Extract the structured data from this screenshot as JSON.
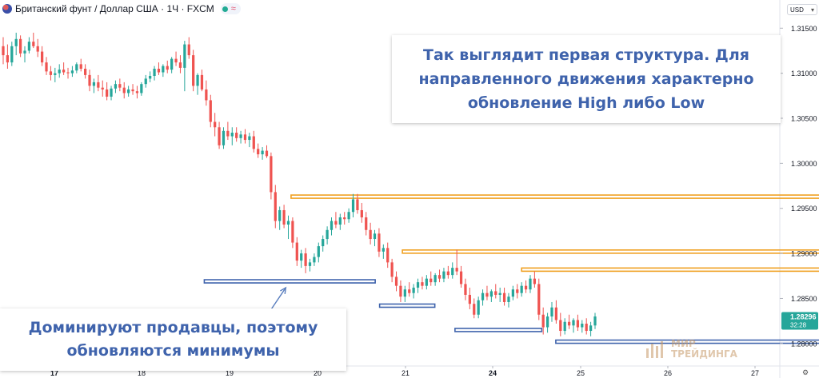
{
  "header": {
    "symbol": "Британский фунт / Доллар США · 1Ч · FXCM",
    "wave_icon": "≈"
  },
  "currency_label": "USD",
  "price_badge": {
    "price": "1.28296",
    "countdown": "32:28",
    "color": "#26a69a"
  },
  "annotations": {
    "top_note": "Так выглядит первая структура. Для направленного движения характерно обновление High либо Low",
    "bottom_note": "Доминируют продавцы, поэтому обновляются минимумы"
  },
  "logo": {
    "line1": "МИР",
    "line2": "ТРЕЙДИНГА"
  },
  "colors": {
    "up": "#26a69a",
    "down": "#ef5350",
    "high_zone": "#f0a020",
    "low_zone": "#3f63ac",
    "arrow": "#5b7fbf",
    "text": "#3f63ac"
  },
  "chart_data": {
    "type": "candlestick",
    "x_ticks": [
      {
        "label": "17",
        "bold": true
      },
      {
        "label": "18",
        "bold": false
      },
      {
        "label": "19",
        "bold": false
      },
      {
        "label": "20",
        "bold": false
      },
      {
        "label": "21",
        "bold": false
      },
      {
        "label": "24",
        "bold": true
      },
      {
        "label": "25",
        "bold": false
      },
      {
        "label": "26",
        "bold": false
      },
      {
        "label": "27",
        "bold": false
      }
    ],
    "y_ticks": [
      "1.31500",
      "1.31000",
      "1.30500",
      "1.30000",
      "1.29500",
      "1.29000",
      "1.28500",
      "1.28000"
    ],
    "ylim": [
      1.2775,
      1.316
    ],
    "last_price": 1.28296,
    "zones": [
      {
        "kind": "high",
        "from_day": 19.7,
        "to_day": 25.84,
        "price": 1.2963
      },
      {
        "kind": "high",
        "from_day": 20.97,
        "to_day": 25.84,
        "price": 1.2902
      },
      {
        "kind": "high",
        "from_day": 22.33,
        "to_day": 25.84,
        "price": 1.2882
      },
      {
        "kind": "low",
        "from_day": 18.71,
        "to_day": 20.66,
        "price": 1.2869
      },
      {
        "kind": "low",
        "from_day": 20.71,
        "to_day": 21.34,
        "price": 1.2842
      },
      {
        "kind": "low",
        "from_day": 21.57,
        "to_day": 22.56,
        "price": 1.2815
      },
      {
        "kind": "low",
        "from_day": 22.72,
        "to_day": 25.84,
        "price": 1.2802
      }
    ],
    "arrow": {
      "from_day": 19.37,
      "from_price": 1.2823,
      "to_day": 19.64,
      "to_price": 1.2862
    },
    "candles": [
      [
        1.313,
        1.314,
        1.311,
        1.312
      ],
      [
        1.312,
        1.3132,
        1.3105,
        1.3112
      ],
      [
        1.3112,
        1.3135,
        1.3108,
        1.313
      ],
      [
        1.313,
        1.3145,
        1.312,
        1.3138
      ],
      [
        1.3138,
        1.3142,
        1.3118,
        1.3122
      ],
      [
        1.3122,
        1.313,
        1.3112,
        1.3125
      ],
      [
        1.3125,
        1.314,
        1.3122,
        1.3135
      ],
      [
        1.3135,
        1.3145,
        1.3128,
        1.313
      ],
      [
        1.313,
        1.3138,
        1.3118,
        1.3124
      ],
      [
        1.3124,
        1.313,
        1.3108,
        1.3112
      ],
      [
        1.3112,
        1.3118,
        1.3098,
        1.3102
      ],
      [
        1.3102,
        1.3108,
        1.3092,
        1.3098
      ],
      [
        1.3098,
        1.3106,
        1.309,
        1.31
      ],
      [
        1.31,
        1.311,
        1.3095,
        1.3104
      ],
      [
        1.3104,
        1.3112,
        1.3098,
        1.3101
      ],
      [
        1.3101,
        1.3106,
        1.3094,
        1.31
      ],
      [
        1.31,
        1.3108,
        1.3096,
        1.3103
      ],
      [
        1.3103,
        1.3112,
        1.31,
        1.311
      ],
      [
        1.311,
        1.3116,
        1.3102,
        1.3105
      ],
      [
        1.3105,
        1.311,
        1.3094,
        1.3098
      ],
      [
        1.3098,
        1.3104,
        1.308,
        1.3086
      ],
      [
        1.3086,
        1.3094,
        1.3078,
        1.309
      ],
      [
        1.309,
        1.3098,
        1.308,
        1.3084
      ],
      [
        1.3084,
        1.3092,
        1.3074,
        1.3082
      ],
      [
        1.3082,
        1.309,
        1.307,
        1.3074
      ],
      [
        1.3074,
        1.3086,
        1.307,
        1.3083
      ],
      [
        1.3083,
        1.3092,
        1.3078,
        1.3088
      ],
      [
        1.3088,
        1.3094,
        1.308,
        1.3084
      ],
      [
        1.3084,
        1.309,
        1.3072,
        1.3078
      ],
      [
        1.3078,
        1.3086,
        1.3074,
        1.3082
      ],
      [
        1.3082,
        1.3088,
        1.3076,
        1.308
      ],
      [
        1.308,
        1.3086,
        1.3072,
        1.3078
      ],
      [
        1.3078,
        1.309,
        1.3075,
        1.3088
      ],
      [
        1.3088,
        1.3098,
        1.3084,
        1.3094
      ],
      [
        1.3094,
        1.3102,
        1.309,
        1.3097
      ],
      [
        1.3097,
        1.3108,
        1.3092,
        1.3105
      ],
      [
        1.3105,
        1.3112,
        1.3098,
        1.3101
      ],
      [
        1.3101,
        1.311,
        1.3096,
        1.3108
      ],
      [
        1.3108,
        1.3114,
        1.31,
        1.3104
      ],
      [
        1.3104,
        1.3118,
        1.31,
        1.3116
      ],
      [
        1.3116,
        1.3124,
        1.3108,
        1.3112
      ],
      [
        1.3112,
        1.312,
        1.31,
        1.3106
      ],
      [
        1.3106,
        1.3136,
        1.308,
        1.3132
      ],
      [
        1.3132,
        1.314,
        1.3116,
        1.312
      ],
      [
        1.312,
        1.3126,
        1.308,
        1.3086
      ],
      [
        1.3086,
        1.31,
        1.3076,
        1.3098
      ],
      [
        1.3098,
        1.3104,
        1.308,
        1.3082
      ],
      [
        1.3082,
        1.3092,
        1.3064,
        1.307
      ],
      [
        1.307,
        1.3076,
        1.304,
        1.3046
      ],
      [
        1.3046,
        1.3056,
        1.303,
        1.304
      ],
      [
        1.304,
        1.3046,
        1.3016,
        1.302
      ],
      [
        1.302,
        1.304,
        1.3016,
        1.3036
      ],
      [
        1.3036,
        1.3046,
        1.3026,
        1.303
      ],
      [
        1.303,
        1.304,
        1.302,
        1.3034
      ],
      [
        1.3034,
        1.304,
        1.3024,
        1.3028
      ],
      [
        1.3028,
        1.3036,
        1.3022,
        1.3032
      ],
      [
        1.3032,
        1.3038,
        1.3022,
        1.3026
      ],
      [
        1.3026,
        1.3034,
        1.3018,
        1.303
      ],
      [
        1.303,
        1.3036,
        1.3012,
        1.3016
      ],
      [
        1.3016,
        1.3022,
        1.3006,
        1.301
      ],
      [
        1.301,
        1.3018,
        1.3004,
        1.3014
      ],
      [
        1.3014,
        1.302,
        1.3006,
        1.3008
      ],
      [
        1.3008,
        1.3012,
        1.296,
        1.2968
      ],
      [
        1.2968,
        1.2976,
        1.2928,
        1.2936
      ],
      [
        1.2936,
        1.2952,
        1.2926,
        1.2948
      ],
      [
        1.2948,
        1.2954,
        1.2928,
        1.2932
      ],
      [
        1.2932,
        1.2942,
        1.2916,
        1.2936
      ],
      [
        1.2936,
        1.294,
        1.2906,
        1.2912
      ],
      [
        1.2912,
        1.2918,
        1.2886,
        1.2892
      ],
      [
        1.2892,
        1.2904,
        1.2884,
        1.29
      ],
      [
        1.29,
        1.2906,
        1.2878,
        1.2886
      ],
      [
        1.2886,
        1.2894,
        1.288,
        1.289
      ],
      [
        1.289,
        1.29,
        1.2886,
        1.2896
      ],
      [
        1.2896,
        1.2912,
        1.289,
        1.2908
      ],
      [
        1.2908,
        1.292,
        1.2902,
        1.2916
      ],
      [
        1.2916,
        1.293,
        1.291,
        1.2926
      ],
      [
        1.2926,
        1.294,
        1.292,
        1.2936
      ],
      [
        1.2936,
        1.2946,
        1.2928,
        1.2932
      ],
      [
        1.2932,
        1.2944,
        1.2926,
        1.294
      ],
      [
        1.294,
        1.2946,
        1.2932,
        1.2938
      ],
      [
        1.2938,
        1.295,
        1.2934,
        1.2946
      ],
      [
        1.2946,
        1.2966,
        1.294,
        1.296
      ],
      [
        1.296,
        1.2966,
        1.2944,
        1.2948
      ],
      [
        1.2948,
        1.2956,
        1.2934,
        1.294
      ],
      [
        1.294,
        1.2946,
        1.292,
        1.2926
      ],
      [
        1.2926,
        1.2934,
        1.291,
        1.2916
      ],
      [
        1.2916,
        1.2926,
        1.2908,
        1.2922
      ],
      [
        1.2922,
        1.2928,
        1.2896,
        1.2902
      ],
      [
        1.2902,
        1.291,
        1.2894,
        1.2906
      ],
      [
        1.2906,
        1.2912,
        1.2884,
        1.289
      ],
      [
        1.289,
        1.2894,
        1.2868,
        1.2874
      ],
      [
        1.2874,
        1.288,
        1.2858,
        1.2864
      ],
      [
        1.2864,
        1.287,
        1.2846,
        1.2852
      ],
      [
        1.2852,
        1.2864,
        1.2846,
        1.286
      ],
      [
        1.286,
        1.2868,
        1.2852,
        1.2856
      ],
      [
        1.2856,
        1.2866,
        1.285,
        1.2862
      ],
      [
        1.2862,
        1.2872,
        1.2856,
        1.2868
      ],
      [
        1.2868,
        1.2874,
        1.286,
        1.2864
      ],
      [
        1.2864,
        1.2876,
        1.286,
        1.2872
      ],
      [
        1.2872,
        1.288,
        1.2864,
        1.2868
      ],
      [
        1.2868,
        1.2878,
        1.2864,
        1.2876
      ],
      [
        1.2876,
        1.2882,
        1.2868,
        1.2872
      ],
      [
        1.2872,
        1.2884,
        1.2868,
        1.288
      ],
      [
        1.288,
        1.2886,
        1.2872,
        1.2876
      ],
      [
        1.2876,
        1.289,
        1.2872,
        1.2884
      ],
      [
        1.2884,
        1.2904,
        1.2876,
        1.288
      ],
      [
        1.288,
        1.2886,
        1.2862,
        1.2866
      ],
      [
        1.2866,
        1.2872,
        1.2848,
        1.2854
      ],
      [
        1.2854,
        1.2862,
        1.2838,
        1.2844
      ],
      [
        1.2844,
        1.285,
        1.2828,
        1.2832
      ],
      [
        1.2832,
        1.2852,
        1.2828,
        1.2848
      ],
      [
        1.2848,
        1.286,
        1.2842,
        1.2856
      ],
      [
        1.2856,
        1.2864,
        1.2848,
        1.2852
      ],
      [
        1.2852,
        1.286,
        1.2846,
        1.2858
      ],
      [
        1.2858,
        1.2866,
        1.285,
        1.2854
      ],
      [
        1.2854,
        1.2862,
        1.2846,
        1.2856
      ],
      [
        1.2856,
        1.2862,
        1.2842,
        1.2846
      ],
      [
        1.2846,
        1.2856,
        1.284,
        1.2852
      ],
      [
        1.2852,
        1.2864,
        1.2848,
        1.286
      ],
      [
        1.286,
        1.2866,
        1.285,
        1.2856
      ],
      [
        1.2856,
        1.2868,
        1.2852,
        1.2864
      ],
      [
        1.2864,
        1.287,
        1.2856,
        1.286
      ],
      [
        1.286,
        1.2876,
        1.2856,
        1.2872
      ],
      [
        1.2872,
        1.288,
        1.2862,
        1.2866
      ],
      [
        1.2866,
        1.2872,
        1.2826,
        1.2832
      ],
      [
        1.2832,
        1.284,
        1.281,
        1.2818
      ],
      [
        1.2818,
        1.2834,
        1.2812,
        1.283
      ],
      [
        1.283,
        1.2846,
        1.2824,
        1.284
      ],
      [
        1.284,
        1.2848,
        1.2822,
        1.2826
      ],
      [
        1.2826,
        1.2834,
        1.2808,
        1.2814
      ],
      [
        1.2814,
        1.2828,
        1.281,
        1.2824
      ],
      [
        1.2824,
        1.2832,
        1.2816,
        1.282
      ],
      [
        1.282,
        1.2828,
        1.2812,
        1.2826
      ],
      [
        1.2826,
        1.2832,
        1.2814,
        1.2818
      ],
      [
        1.2818,
        1.2826,
        1.2812,
        1.2822
      ],
      [
        1.2822,
        1.2828,
        1.281,
        1.2814
      ],
      [
        1.2814,
        1.2824,
        1.2808,
        1.282
      ],
      [
        1.282,
        1.2834,
        1.2816,
        1.283
      ]
    ]
  }
}
